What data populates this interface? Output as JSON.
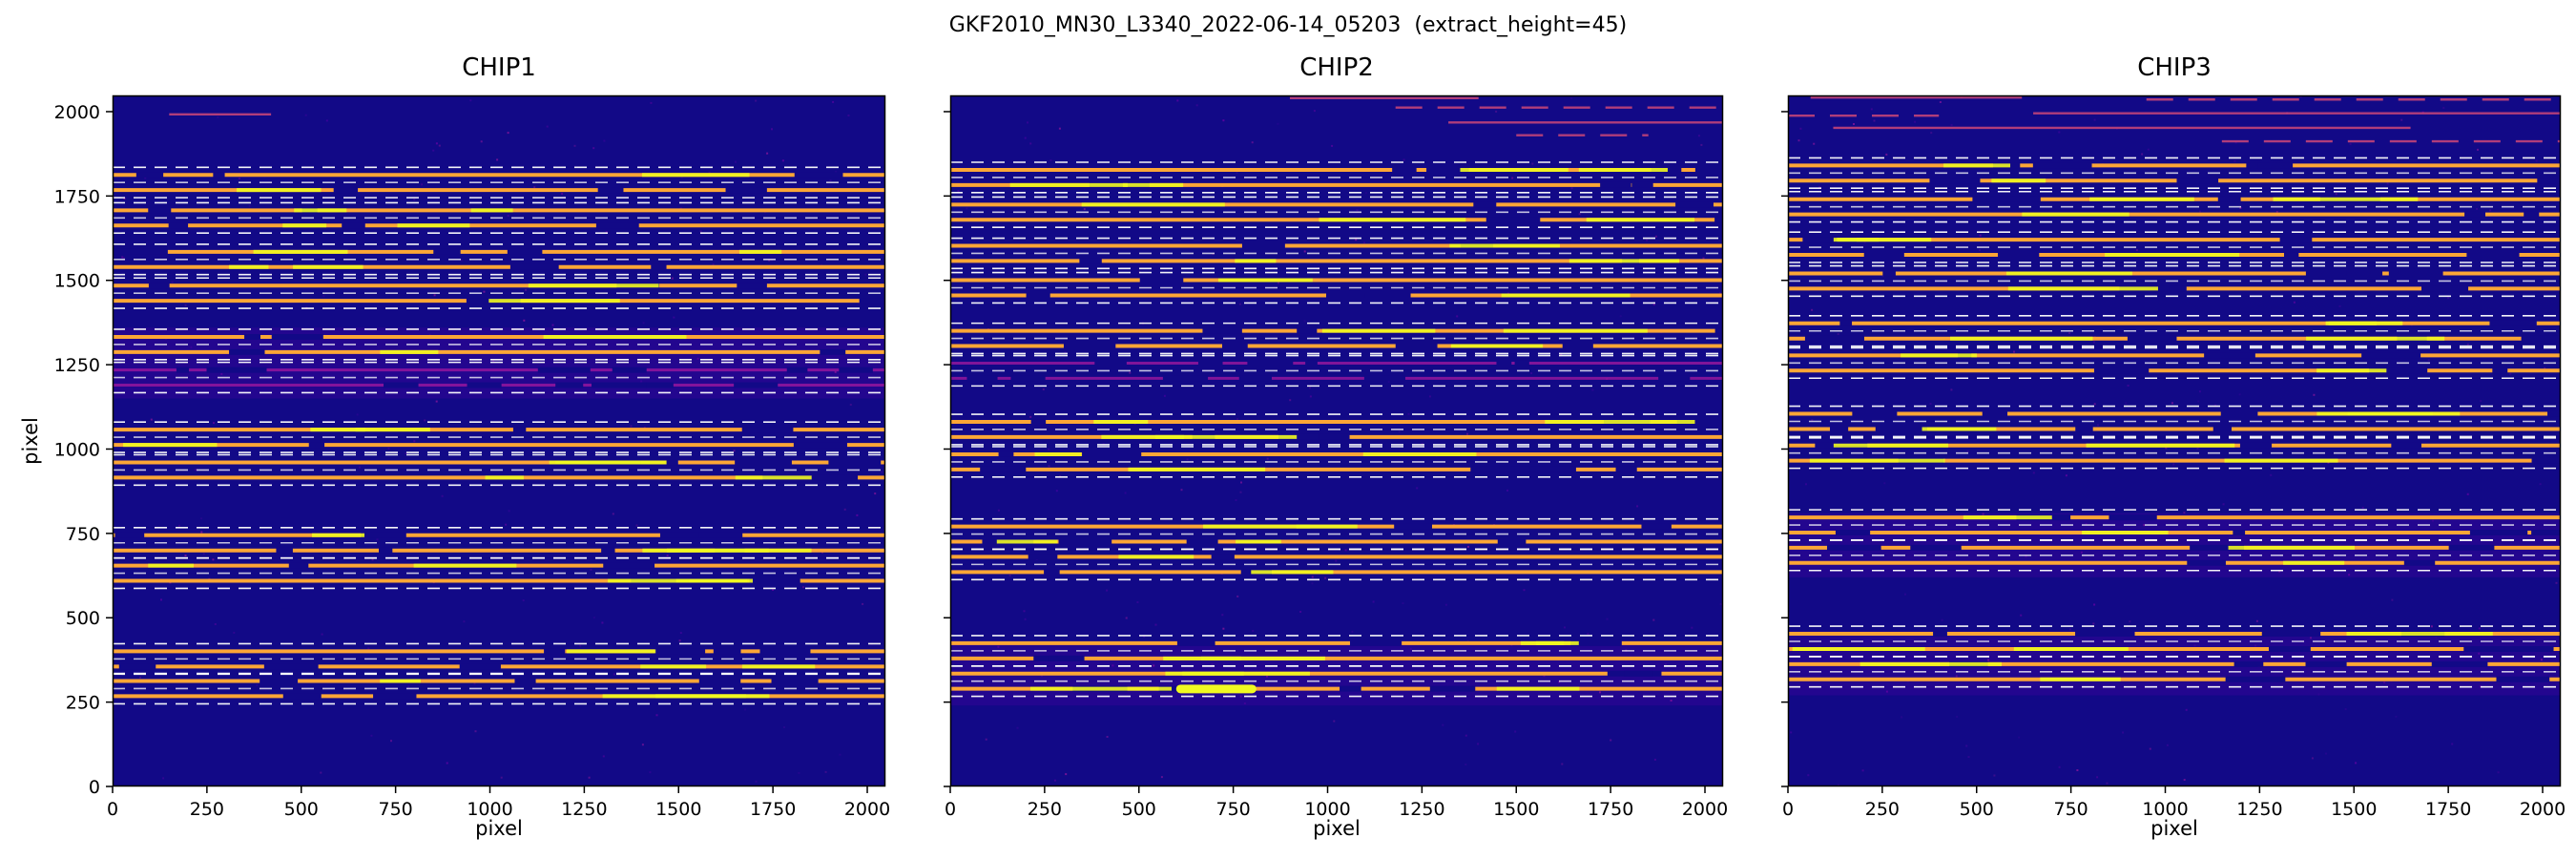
{
  "figure": {
    "title": "GKF2010_MN30_L3340_2022-06-14_05203  (extract_height=45)"
  },
  "axes": {
    "xlabel": "pixel",
    "ylabel": "pixel",
    "xticks": [
      0,
      250,
      500,
      750,
      1000,
      1250,
      1500,
      1750,
      2000
    ],
    "yticks": [
      0,
      250,
      500,
      750,
      1000,
      1250,
      1500,
      1750,
      2000
    ]
  },
  "colors": {
    "background": "#120987",
    "trace": "#fca636",
    "bright": "#f0f921",
    "weak": "#9c179e",
    "streak": "#cc4778",
    "dashed": "#ffffff",
    "haze": "#46039f",
    "axis": "#000000",
    "noise": [
      "#46039f",
      "#7201a8",
      "#9c179e"
    ]
  },
  "chart_data": {
    "type": "heatmap",
    "title": "GKF2010_MN30_L3340_2022-06-14_05203  (extract_height=45)",
    "xlabel": "pixel",
    "ylabel": "pixel",
    "xlim": [
      0,
      2048
    ],
    "ylim": [
      0,
      2048
    ],
    "extract_height": 45,
    "fiber_offset": 22.5,
    "panels": [
      {
        "title": "CHIP1",
        "orders": [
          {
            "y": 1790,
            "weak": false
          },
          {
            "y": 1685,
            "weak": false
          },
          {
            "y": 1562,
            "weak": false
          },
          {
            "y": 1462,
            "weak": false
          },
          {
            "y": 1310,
            "weak": false
          },
          {
            "y": 1212,
            "weak": true
          },
          {
            "y": 1035,
            "weak": false
          },
          {
            "y": 938,
            "weak": false
          },
          {
            "y": 722,
            "weak": false
          },
          {
            "y": 632,
            "weak": false
          },
          {
            "y": 378,
            "weak": false
          },
          {
            "y": 290,
            "weak": false
          }
        ],
        "streaks": [
          {
            "y": 1992,
            "x1": 150,
            "x2": 420
          }
        ],
        "haze_bands": [
          [
            1150,
            1360
          ]
        ],
        "bright_blobs": []
      },
      {
        "title": "CHIP2",
        "orders": [
          {
            "y": 1805,
            "weak": false
          },
          {
            "y": 1702,
            "weak": false
          },
          {
            "y": 1580,
            "weak": false
          },
          {
            "y": 1478,
            "weak": false
          },
          {
            "y": 1328,
            "weak": false
          },
          {
            "y": 1232,
            "weak": true
          },
          {
            "y": 1058,
            "weak": false
          },
          {
            "y": 962,
            "weak": false
          },
          {
            "y": 748,
            "weak": false
          },
          {
            "y": 658,
            "weak": false
          },
          {
            "y": 402,
            "weak": false
          },
          {
            "y": 312,
            "weak": false
          }
        ],
        "streaks": [
          {
            "y": 2040,
            "x1": 900,
            "x2": 1400
          },
          {
            "y": 2012,
            "x1": 1180,
            "x2": 2048
          },
          {
            "y": 1968,
            "x1": 1320,
            "x2": 2048
          },
          {
            "y": 1930,
            "x1": 1500,
            "x2": 1850
          }
        ],
        "haze_bands": [
          [
            240,
            430
          ]
        ],
        "bright_blobs": [
          {
            "y": 289,
            "x1": 610,
            "x2": 800,
            "w": 9
          }
        ]
      },
      {
        "title": "CHIP3",
        "orders": [
          {
            "y": 1818,
            "weak": false
          },
          {
            "y": 1718,
            "weak": false
          },
          {
            "y": 1598,
            "weak": false
          },
          {
            "y": 1498,
            "weak": false
          },
          {
            "y": 1350,
            "weak": false
          },
          {
            "y": 1255,
            "weak": false
          },
          {
            "y": 1082,
            "weak": false
          },
          {
            "y": 988,
            "weak": false
          },
          {
            "y": 775,
            "weak": false
          },
          {
            "y": 685,
            "weak": false
          },
          {
            "y": 430,
            "weak": false
          },
          {
            "y": 340,
            "weak": false
          }
        ],
        "streaks": [
          {
            "y": 2042,
            "x1": 60,
            "x2": 620
          },
          {
            "y": 2036,
            "x1": 950,
            "x2": 2048
          },
          {
            "y": 1995,
            "x1": 650,
            "x2": 2048
          },
          {
            "y": 1988,
            "x1": 0,
            "x2": 400
          },
          {
            "y": 1952,
            "x1": 120,
            "x2": 1650
          },
          {
            "y": 1912,
            "x1": 1150,
            "x2": 2048
          }
        ],
        "haze_bands": [
          [
            270,
            460
          ],
          [
            620,
            810
          ]
        ],
        "bright_blobs": []
      }
    ]
  }
}
